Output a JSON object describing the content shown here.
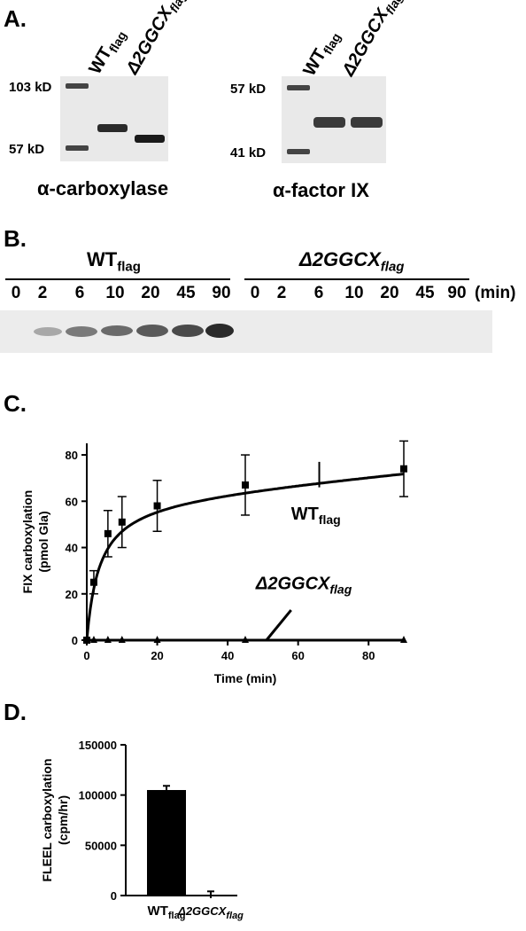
{
  "panelA": {
    "letter": "A.",
    "gel1": {
      "lanes": [
        {
          "main": "WT",
          "sub": "flag"
        },
        {
          "main": "Δ2GGCX",
          "sub": "flag"
        }
      ],
      "markers": [
        "103 kD",
        "57 kD"
      ],
      "caption": "α-carboxylase"
    },
    "gel2": {
      "lanes": [
        {
          "main": "WT",
          "sub": "flag"
        },
        {
          "main": "Δ2GGCX",
          "sub": "flag"
        }
      ],
      "markers": [
        "57 kD",
        "41 kD"
      ],
      "caption": "α-factor IX"
    }
  },
  "panelB": {
    "letter": "B.",
    "group1": {
      "main": "WT",
      "sub": "flag"
    },
    "group2": {
      "main": "Δ2GGCX",
      "sub": "flag"
    },
    "timepoints": [
      "0",
      "2",
      "6",
      "10",
      "20",
      "45",
      "90"
    ],
    "unit": "(min)"
  },
  "panelC": {
    "letter": "C.",
    "chart_data": {
      "type": "line",
      "xlabel": "Time (min)",
      "ylabel_line1": "FIX carboxylation",
      "ylabel_line2": "(pmol Gla)",
      "xlim": [
        0,
        90
      ],
      "ylim": [
        0,
        85
      ],
      "xticks": [
        0,
        20,
        40,
        60,
        80
      ],
      "yticks": [
        0,
        20,
        40,
        60,
        80
      ],
      "series": [
        {
          "name": "WT",
          "name_sub": "flag",
          "marker": "square",
          "x": [
            0,
            2,
            6,
            10,
            20,
            45,
            90
          ],
          "y": [
            0,
            25,
            46,
            51,
            58,
            67,
            74
          ],
          "err": [
            0,
            5,
            10,
            11,
            11,
            13,
            12
          ]
        },
        {
          "name": "Δ2GGCX",
          "name_sub": "flag",
          "marker": "triangle",
          "x": [
            0,
            2,
            6,
            10,
            20,
            45,
            90
          ],
          "y": [
            0,
            0,
            0,
            0,
            0,
            0,
            0
          ]
        }
      ]
    }
  },
  "panelD": {
    "letter": "D.",
    "chart_data": {
      "type": "bar",
      "ylabel_line1": "FLEEL carboxylation",
      "ylabel_line2": "(cpm/hr)",
      "categories": [
        {
          "main": "WT",
          "sub": "flag"
        },
        {
          "main": "Δ2GGCX",
          "sub": "flag"
        }
      ],
      "values": [
        105000,
        0
      ],
      "err": [
        1500,
        1500
      ],
      "ylim": [
        0,
        150000
      ],
      "yticks": [
        "0",
        "50000",
        "100000",
        "150000"
      ]
    }
  }
}
